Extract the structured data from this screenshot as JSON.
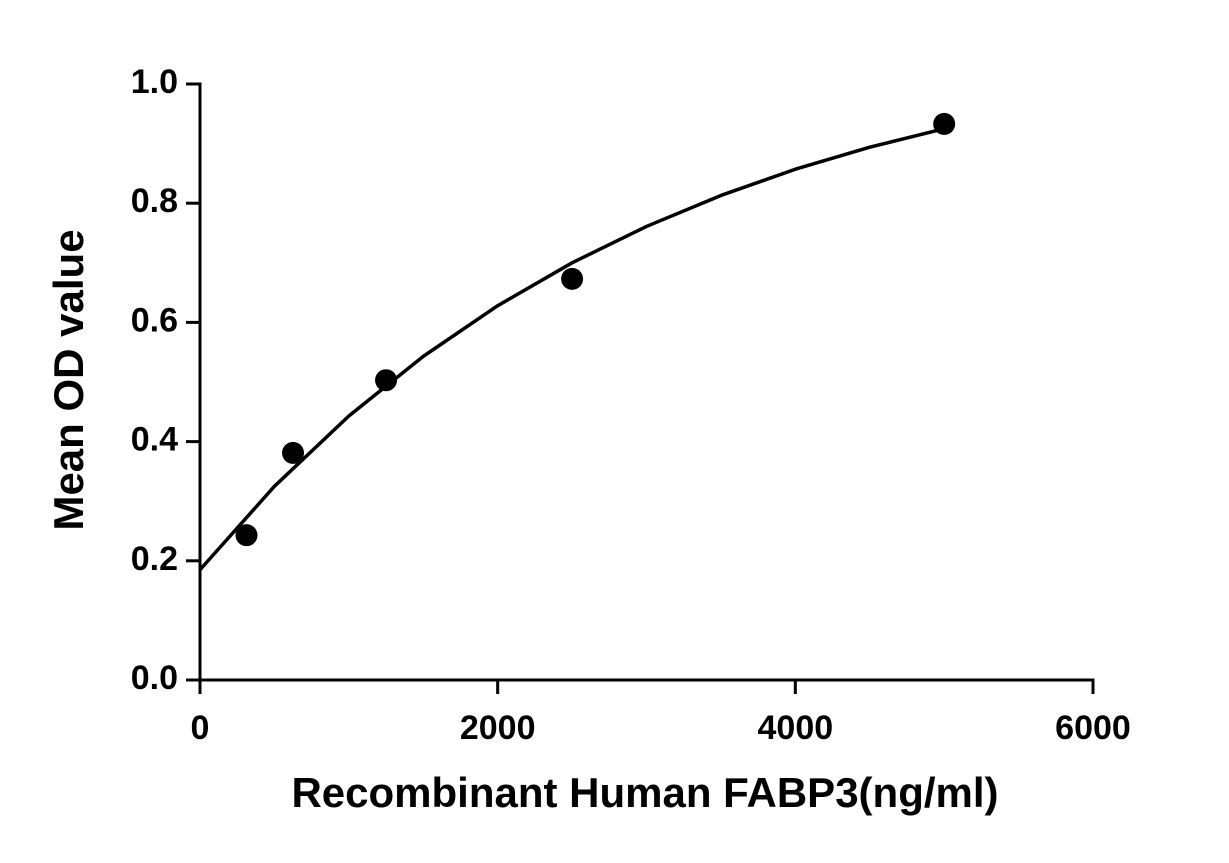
{
  "chart_data": {
    "type": "scatter",
    "x_label": "Recombinant Human FABP3(ng/ml)",
    "y_label": "Mean OD value",
    "xlim": [
      0,
      6000
    ],
    "xticks": [
      0,
      2000,
      4000,
      6000
    ],
    "ylim": [
      0,
      1.0
    ],
    "yticks": [
      {
        "value": 0,
        "label": "0.0"
      },
      {
        "value": 0.2,
        "label": "0.2"
      },
      {
        "value": 0.4,
        "label": "0.4"
      },
      {
        "value": 0.6,
        "label": "0.6"
      },
      {
        "value": 0.8,
        "label": "0.8"
      },
      {
        "value": 1.0,
        "label": "1.0"
      }
    ],
    "series": [
      {
        "kind": "points",
        "color": "#000000",
        "x": [
          312.5,
          625,
          1250,
          2500,
          5000
        ],
        "values": [
          0.243,
          0.381,
          0.503,
          0.673,
          0.933
        ]
      },
      {
        "kind": "line",
        "color": "#000000",
        "x": [
          0,
          500,
          1000,
          1500,
          2000,
          2500,
          3000,
          3500,
          4000,
          4500,
          5000
        ],
        "values": [
          0.185,
          0.325,
          0.443,
          0.543,
          0.628,
          0.7,
          0.761,
          0.813,
          0.857,
          0.894,
          0.925
        ]
      }
    ]
  }
}
